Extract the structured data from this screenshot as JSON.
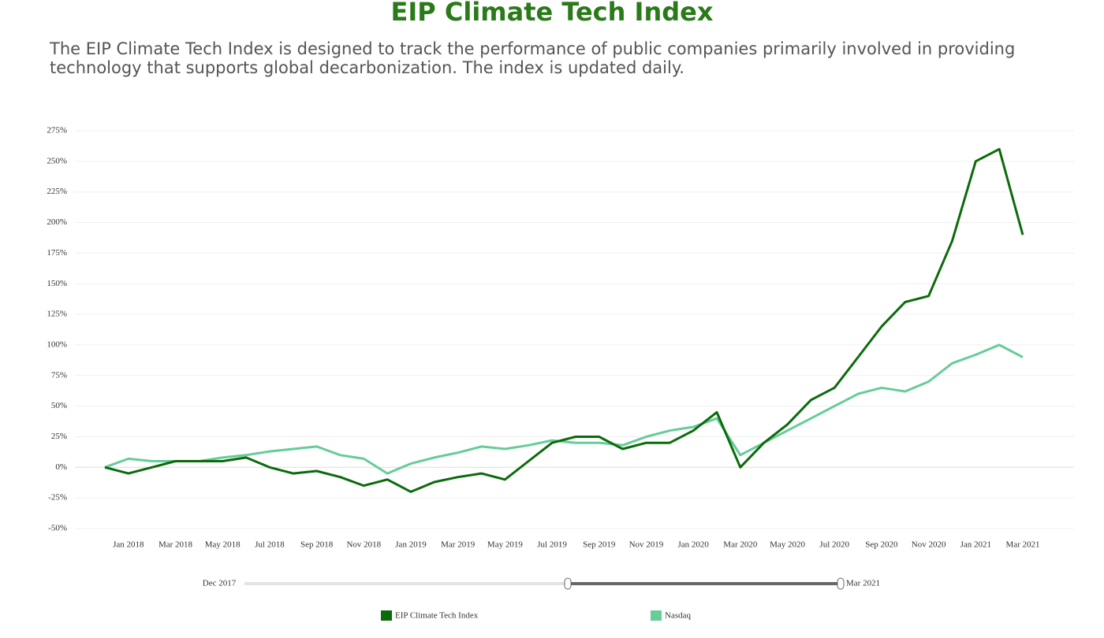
{
  "chart_data": {
    "type": "line",
    "title": "EIP Climate Tech Index",
    "subtitle": "The EIP Climate Tech Index is designed to track the performance of public companies primarily involved in providing technology that supports global decarbonization. The index is updated daily.",
    "x": [
      "2017-12",
      "2018-01",
      "2018-02",
      "2018-03",
      "2018-04",
      "2018-05",
      "2018-06",
      "2018-07",
      "2018-08",
      "2018-09",
      "2018-10",
      "2018-11",
      "2018-12",
      "2019-01",
      "2019-02",
      "2019-03",
      "2019-04",
      "2019-05",
      "2019-06",
      "2019-07",
      "2019-08",
      "2019-09",
      "2019-10",
      "2019-11",
      "2019-12",
      "2020-01",
      "2020-02",
      "2020-03",
      "2020-04",
      "2020-05",
      "2020-06",
      "2020-07",
      "2020-08",
      "2020-09",
      "2020-10",
      "2020-11",
      "2020-12",
      "2021-01",
      "2021-02",
      "2021-03"
    ],
    "series": [
      {
        "name": "EIP Climate Tech Index",
        "color": "#0b6b0b",
        "values": [
          0,
          -5,
          0,
          5,
          5,
          5,
          8,
          0,
          -5,
          -3,
          -8,
          -15,
          -10,
          -20,
          -12,
          -8,
          -5,
          -10,
          5,
          20,
          25,
          25,
          15,
          20,
          20,
          30,
          45,
          0,
          20,
          35,
          55,
          65,
          90,
          115,
          135,
          140,
          185,
          250,
          260,
          190
        ]
      },
      {
        "name": "Nasdaq",
        "color": "#66cc99",
        "values": [
          0,
          7,
          5,
          5,
          5,
          8,
          10,
          13,
          15,
          17,
          10,
          7,
          -5,
          3,
          8,
          12,
          17,
          15,
          18,
          22,
          20,
          20,
          18,
          25,
          30,
          33,
          40,
          10,
          20,
          30,
          40,
          50,
          60,
          65,
          62,
          70,
          85,
          92,
          100,
          90
        ]
      }
    ],
    "xlim": [
      "2017-12",
      "2021-03"
    ],
    "xticks": [
      {
        "value": "2018-01",
        "label": "Jan 2018"
      },
      {
        "value": "2018-03",
        "label": "Mar 2018"
      },
      {
        "value": "2018-05",
        "label": "May 2018"
      },
      {
        "value": "2018-07",
        "label": "Jul 2018"
      },
      {
        "value": "2018-09",
        "label": "Sep 2018"
      },
      {
        "value": "2018-11",
        "label": "Nov 2018"
      },
      {
        "value": "2019-01",
        "label": "Jan 2019"
      },
      {
        "value": "2019-03",
        "label": "Mar 2019"
      },
      {
        "value": "2019-05",
        "label": "May 2019"
      },
      {
        "value": "2019-07",
        "label": "Jul 2019"
      },
      {
        "value": "2019-09",
        "label": "Sep 2019"
      },
      {
        "value": "2019-11",
        "label": "Nov 2019"
      },
      {
        "value": "2020-01",
        "label": "Jan 2020"
      },
      {
        "value": "2020-03",
        "label": "Mar 2020"
      },
      {
        "value": "2020-05",
        "label": "May 2020"
      },
      {
        "value": "2020-07",
        "label": "Jul 2020"
      },
      {
        "value": "2020-09",
        "label": "Sep 2020"
      },
      {
        "value": "2020-11",
        "label": "Nov 2020"
      },
      {
        "value": "2021-01",
        "label": "Jan 2021"
      },
      {
        "value": "2021-03",
        "label": "Mar 2021"
      }
    ],
    "ylim": [
      -50,
      275
    ],
    "yticks": [
      {
        "value": -50,
        "label": "-50%"
      },
      {
        "value": -25,
        "label": "-25%"
      },
      {
        "value": 0,
        "label": "0%"
      },
      {
        "value": 25,
        "label": "25%"
      },
      {
        "value": 50,
        "label": "50%"
      },
      {
        "value": 75,
        "label": "75%"
      },
      {
        "value": 100,
        "label": "100%"
      },
      {
        "value": 125,
        "label": "125%"
      },
      {
        "value": 150,
        "label": "150%"
      },
      {
        "value": 175,
        "label": "175%"
      },
      {
        "value": 200,
        "label": "200%"
      },
      {
        "value": 225,
        "label": "225%"
      },
      {
        "value": 250,
        "label": "250%"
      },
      {
        "value": 275,
        "label": "275%"
      }
    ],
    "grid": true,
    "range_slider": {
      "start": "Dec 2017",
      "end": "Mar 2021"
    }
  }
}
